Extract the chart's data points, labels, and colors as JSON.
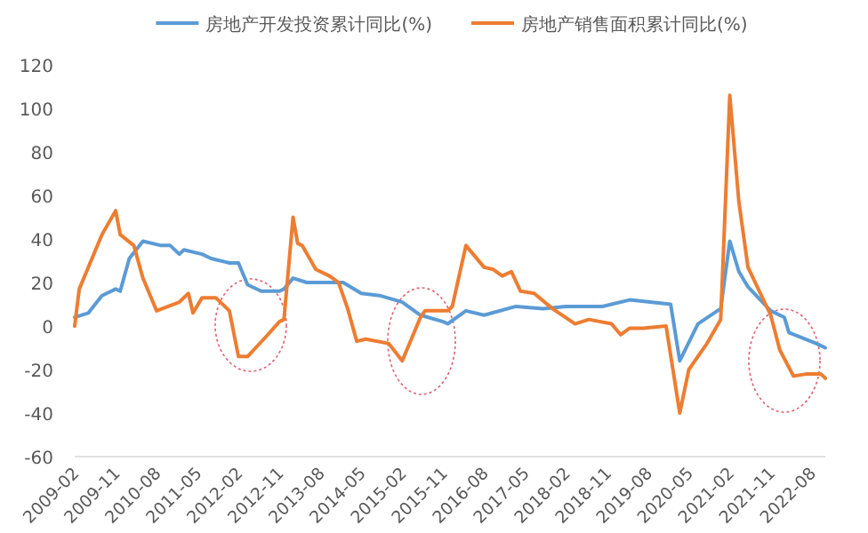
{
  "chart_data": {
    "type": "line",
    "legend": "top",
    "line_style": "solid",
    "xlim": [
      "2009-02",
      "2022-11"
    ],
    "ylim": [
      -60,
      120
    ],
    "yticks": [
      -60,
      -40,
      -20,
      0,
      20,
      40,
      60,
      80,
      100,
      120
    ],
    "xticks": [
      "2009-02",
      "2009-11",
      "2010-08",
      "2011-05",
      "2012-02",
      "2012-11",
      "2013-08",
      "2014-05",
      "2015-02",
      "2015-11",
      "2016-08",
      "2017-05",
      "2018-02",
      "2018-11",
      "2019-08",
      "2020-05",
      "2021-02",
      "2021-11",
      "2022-08"
    ],
    "series": [
      {
        "name": "房地产开发投资累计同比(%)",
        "color": "#5b9bd5",
        "x": [
          "2009-02",
          "2009-05",
          "2009-08",
          "2009-11",
          "2009-12",
          "2010-02",
          "2010-05",
          "2010-09",
          "2010-11",
          "2011-01",
          "2011-02",
          "2011-06",
          "2011-08",
          "2011-12",
          "2012-02",
          "2012-04",
          "2012-07",
          "2012-11",
          "2012-12",
          "2013-02",
          "2013-05",
          "2013-10",
          "2014-01",
          "2014-05",
          "2014-09",
          "2015-02",
          "2015-06",
          "2015-11",
          "2015-12",
          "2016-04",
          "2016-08",
          "2017-03",
          "2017-09",
          "2018-02",
          "2018-10",
          "2019-04",
          "2020-01",
          "2020-03",
          "2020-07",
          "2020-12",
          "2021-02",
          "2021-04",
          "2021-06",
          "2021-11",
          "2022-02",
          "2022-03",
          "2022-09",
          "2022-11"
        ],
        "values": [
          4,
          6,
          14,
          17,
          16,
          31,
          39,
          37,
          37,
          33,
          35,
          33,
          31,
          29,
          29,
          19,
          16,
          16,
          17,
          22,
          20,
          20,
          20,
          15,
          14,
          11,
          5,
          2,
          1,
          7,
          5,
          9,
          8,
          9,
          9,
          12,
          10,
          -16,
          1,
          8,
          39,
          25,
          18,
          7,
          4,
          -3,
          -8,
          -10
        ]
      },
      {
        "name": "房地产销售面积累计同比(%)",
        "color": "#ed7d31",
        "x": [
          "2009-02",
          "2009-03",
          "2009-08",
          "2009-11",
          "2009-12",
          "2010-03",
          "2010-05",
          "2010-08",
          "2011-01",
          "2011-03",
          "2011-04",
          "2011-06",
          "2011-09",
          "2011-12",
          "2012-02",
          "2012-04",
          "2012-08",
          "2012-11",
          "2012-12",
          "2013-02",
          "2013-03",
          "2013-04",
          "2013-07",
          "2013-10",
          "2013-12",
          "2014-02",
          "2014-04",
          "2014-06",
          "2014-11",
          "2015-02",
          "2015-06",
          "2015-07",
          "2015-12",
          "2016-01",
          "2016-04",
          "2016-08",
          "2016-10",
          "2016-12",
          "2017-02",
          "2017-04",
          "2017-07",
          "2017-11",
          "2018-04",
          "2018-07",
          "2018-12",
          "2019-02",
          "2019-04",
          "2019-07",
          "2019-12",
          "2020-03",
          "2020-05",
          "2020-09",
          "2020-12",
          "2021-02",
          "2021-04",
          "2021-06",
          "2021-11",
          "2022-01",
          "2022-04",
          "2022-07",
          "2022-10",
          "2022-11"
        ],
        "values": [
          0,
          17,
          42,
          53,
          42,
          37,
          22,
          7,
          11,
          15,
          6,
          13,
          13,
          7,
          -14,
          -14,
          -5,
          2,
          3,
          50,
          38,
          37,
          26,
          23,
          20,
          8,
          -7,
          -6,
          -8,
          -16,
          4,
          7,
          7,
          9,
          37,
          27,
          26,
          23,
          25,
          16,
          15,
          8,
          1,
          3,
          1,
          -4,
          -1,
          -1,
          0,
          -40,
          -20,
          -8,
          3,
          106,
          57,
          27,
          5,
          -11,
          -23,
          -22,
          -22,
          -24
        ]
      }
    ]
  }
}
